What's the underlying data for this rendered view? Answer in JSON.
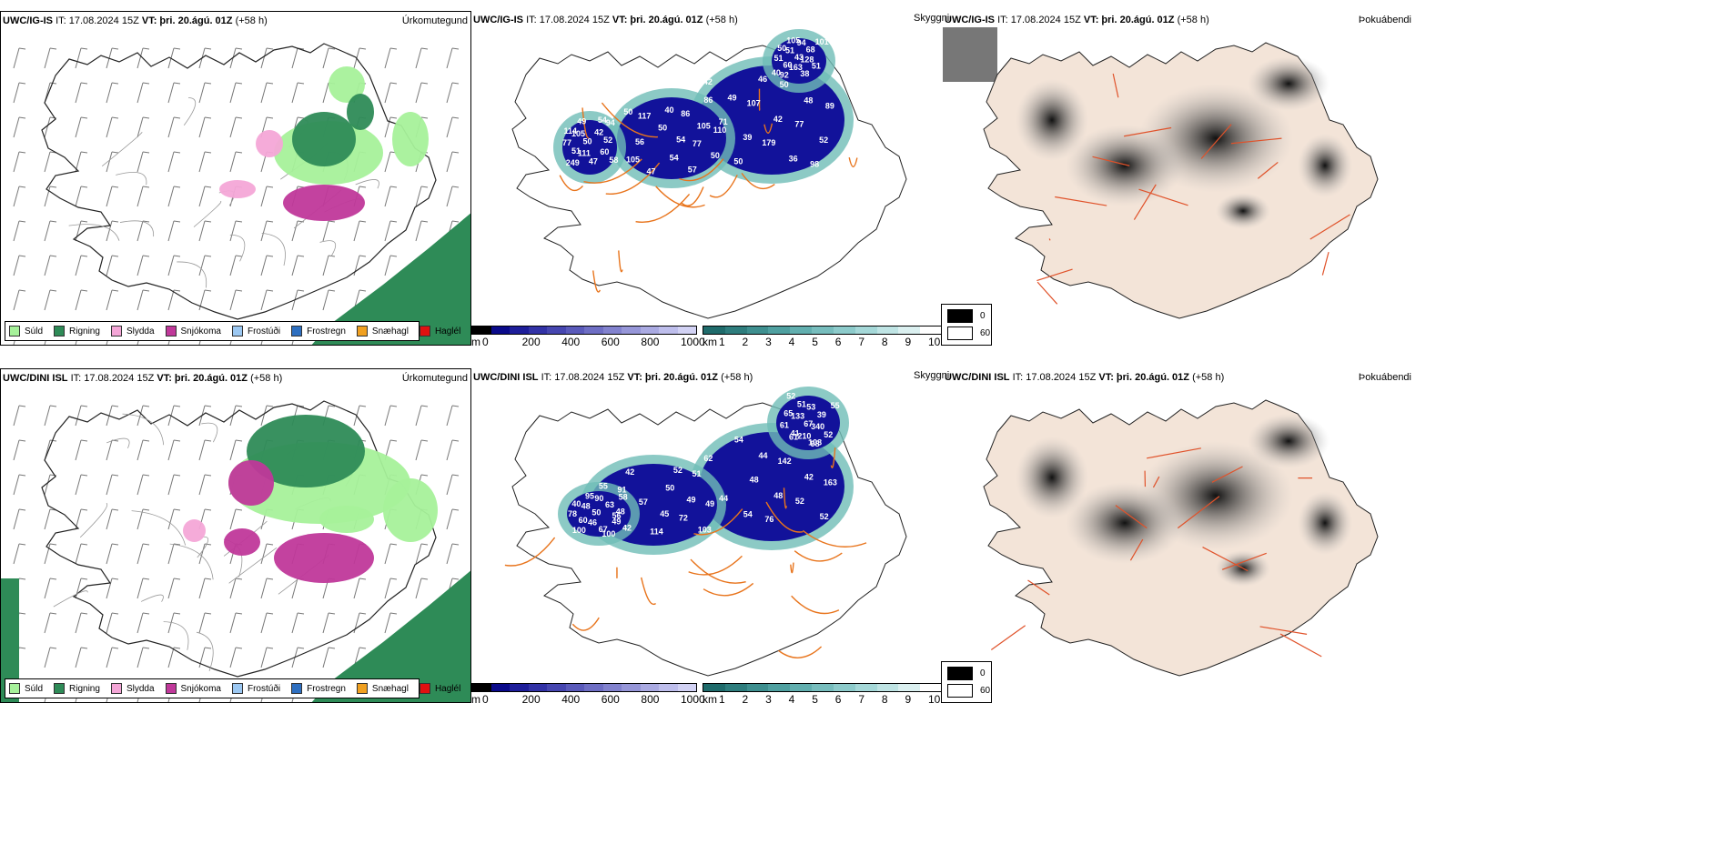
{
  "rows": [
    {
      "model": "UWC/IG-IS",
      "issued": "IT: 17.08.2024 15Z",
      "valid_label": "VT:",
      "valid": "þri. 20.ágú. 01Z",
      "lead": "(+58 h)",
      "numbers": [
        "49",
        "40",
        "54",
        "40",
        "39",
        "54",
        "52",
        "50",
        "46",
        "57",
        "58",
        "60",
        "42",
        "105",
        "114",
        "105",
        "36",
        "50",
        "51",
        "43",
        "48",
        "50",
        "49",
        "38",
        "52",
        "56",
        "50",
        "68",
        "42",
        "47",
        "47",
        "51",
        "71",
        "50",
        "42",
        "101",
        "50",
        "54",
        "60",
        "51",
        "107",
        "86",
        "94",
        "92",
        "179",
        "77",
        "77",
        "51",
        "50",
        "86",
        "249",
        "163",
        "77",
        "110",
        "105",
        "94",
        "98",
        "105",
        "111",
        "128",
        "89",
        "117"
      ]
    },
    {
      "model": "UWC/DINI ISL",
      "issued": "IT: 17.08.2024 15Z",
      "valid_label": "VT:",
      "valid": "þri. 20.ágú. 01Z",
      "lead": "(+58 h)",
      "numbers": [
        "54",
        "45",
        "48",
        "65",
        "44",
        "52",
        "42",
        "41",
        "48",
        "49",
        "40",
        "51",
        "61",
        "103",
        "60",
        "67",
        "42",
        "55",
        "95",
        "98",
        "52",
        "56",
        "50",
        "39",
        "62",
        "42",
        "67",
        "52",
        "44",
        "57",
        "63",
        "55",
        "54",
        "114",
        "49",
        "61",
        "48",
        "50",
        "58",
        "52",
        "76",
        "72",
        "78",
        "133",
        "142",
        "51",
        "100",
        "210",
        "52",
        "49",
        "48",
        "53",
        "103",
        "100",
        "46",
        "340",
        "163",
        "91",
        "90"
      ]
    }
  ],
  "panel_titles": {
    "precip_type": "Úrkomutegund",
    "visibility": "Skyggni",
    "fog": "Þokuábendi"
  },
  "precip_legend": [
    {
      "label": "Súld",
      "color": "#a6f19a"
    },
    {
      "label": "Rigning",
      "color": "#2e8b57"
    },
    {
      "label": "Slydda",
      "color": "#f4a6d7"
    },
    {
      "label": "Snjókoma",
      "color": "#c0389a"
    },
    {
      "label": "Frostúði",
      "color": "#9cc8f2"
    },
    {
      "label": "Frostregn",
      "color": "#2e6fc0"
    },
    {
      "label": "Snæhagl",
      "color": "#f0a020"
    },
    {
      "label": "Haglél",
      "color": "#e01010"
    }
  ],
  "visibility_scale_m": {
    "unit": "m",
    "ticks": [
      "0",
      "200",
      "400",
      "600",
      "800",
      "1000"
    ],
    "colors": [
      "#000000",
      "#0a0a8a",
      "#1e1e9a",
      "#3232a6",
      "#4646b0",
      "#5a5aba",
      "#6e6ec4",
      "#8282ce",
      "#9696d8",
      "#aaaae2",
      "#bebeec",
      "#d2d2f4"
    ]
  },
  "visibility_scale_km": {
    "unit": "km",
    "ticks": [
      "1",
      "2",
      "3",
      "4",
      "5",
      "6",
      "7",
      "8",
      "9",
      "10"
    ],
    "colors": [
      "#1f6b6b",
      "#2e7d7d",
      "#3e8f8f",
      "#4fa0a0",
      "#62afaf",
      "#77bdbd",
      "#8dcbcb",
      "#a5d8d8",
      "#bfe4e4",
      "#dbf0f0",
      "#ffffff"
    ]
  },
  "fog_legend": [
    {
      "value": "0",
      "color": "#000000"
    },
    {
      "value": "60",
      "color": "#ffffff"
    }
  ],
  "colors": {
    "rain_green": "#2e8b57",
    "drizzle_green": "#a6f19a",
    "snow_magenta": "#c0389a",
    "sleet_pink": "#f4a6d7",
    "vis_blue": "#12129a",
    "vis_teal": "#6fbdb7",
    "road_orange": "#e8741c",
    "fog_land": "#f3e4d8",
    "fog_dark": "#3a3a3a"
  }
}
